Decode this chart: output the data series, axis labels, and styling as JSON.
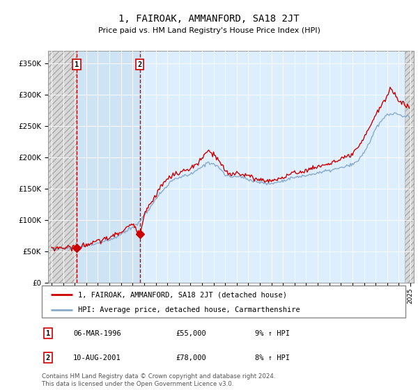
{
  "title": "1, FAIROAK, AMMANFORD, SA18 2JT",
  "subtitle": "Price paid vs. HM Land Registry's House Price Index (HPI)",
  "ylim": [
    0,
    370000
  ],
  "yticks": [
    0,
    50000,
    100000,
    150000,
    200000,
    250000,
    300000,
    350000
  ],
  "legend_line1": "1, FAIROAK, AMMANFORD, SA18 2JT (detached house)",
  "legend_line2": "HPI: Average price, detached house, Carmarthenshire",
  "annotation1_date": "06-MAR-1996",
  "annotation1_price": "£55,000",
  "annotation1_hpi": "9% ↑ HPI",
  "annotation2_date": "10-AUG-2001",
  "annotation2_price": "£78,000",
  "annotation2_hpi": "8% ↑ HPI",
  "footer": "Contains HM Land Registry data © Crown copyright and database right 2024.\nThis data is licensed under the Open Government Licence v3.0.",
  "line_color_red": "#cc0000",
  "line_color_blue": "#88aacc",
  "marker1_x": 1996.17,
  "marker1_y": 55000,
  "marker2_x": 2001.62,
  "marker2_y": 78000,
  "xlim": [
    1993.7,
    2025.3
  ],
  "xticks": [
    1994,
    1995,
    1996,
    1997,
    1998,
    1999,
    2000,
    2001,
    2002,
    2003,
    2004,
    2005,
    2006,
    2007,
    2008,
    2009,
    2010,
    2011,
    2012,
    2013,
    2014,
    2015,
    2016,
    2017,
    2018,
    2019,
    2020,
    2021,
    2022,
    2023,
    2024,
    2025
  ]
}
